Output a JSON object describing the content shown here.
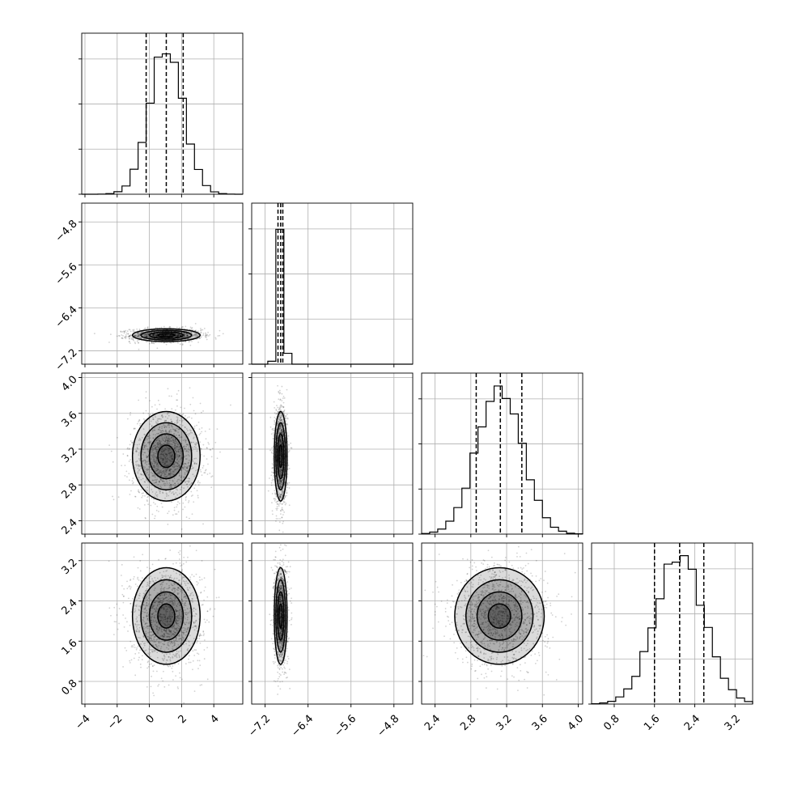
{
  "chart_data": {
    "type": "corner",
    "title": "",
    "grid": true,
    "colors": {
      "hist": "#000000",
      "density": "#000000",
      "grid": "#b0b0b0",
      "points": "#000000"
    },
    "params": [
      {
        "range": [
          -4.2,
          5.8
        ],
        "ticks": [
          -4,
          -2,
          0,
          2,
          4
        ],
        "tick_labels": [
          "−4",
          "−2",
          "0",
          "2",
          "4"
        ],
        "quantiles": [
          -0.2,
          1.05,
          2.1
        ],
        "center": 1.05,
        "sd": 1.05,
        "hist_peak_fraction": 0.91
      },
      {
        "range": [
          -7.45,
          -4.45
        ],
        "ticks": [
          -7.2,
          -6.4,
          -5.6,
          -4.8
        ],
        "tick_labels": [
          "−7.2",
          "−6.4",
          "−5.6",
          "−4.8"
        ],
        "quantiles": [
          -6.96,
          -6.91,
          -6.87
        ],
        "center": -6.91,
        "sd": 0.06,
        "hist_peak_fraction": 0.84
      },
      {
        "range": [
          2.25,
          4.05
        ],
        "ticks": [
          2.4,
          2.8,
          3.2,
          3.6,
          4.0
        ],
        "tick_labels": [
          "2.4",
          "2.8",
          "3.2",
          "3.6",
          "4.0"
        ],
        "quantiles": [
          2.86,
          3.13,
          3.37
        ],
        "center": 3.12,
        "sd": 0.25,
        "hist_peak_fraction": 0.92
      },
      {
        "range": [
          0.35,
          3.55
        ],
        "ticks": [
          0.8,
          1.6,
          2.4,
          3.2
        ],
        "tick_labels": [
          "0.8",
          "1.6",
          "2.4",
          "3.2"
        ],
        "quantiles": [
          1.6,
          2.1,
          2.58
        ],
        "center": 2.1,
        "sd": 0.48,
        "hist_peak_fraction": 0.93
      }
    ],
    "density_panels": [
      {
        "x_param": 0,
        "y_param": 1
      },
      {
        "x_param": 0,
        "y_param": 2
      },
      {
        "x_param": 1,
        "y_param": 2
      },
      {
        "x_param": 0,
        "y_param": 3
      },
      {
        "x_param": 1,
        "y_param": 3
      },
      {
        "x_param": 2,
        "y_param": 3
      }
    ]
  }
}
